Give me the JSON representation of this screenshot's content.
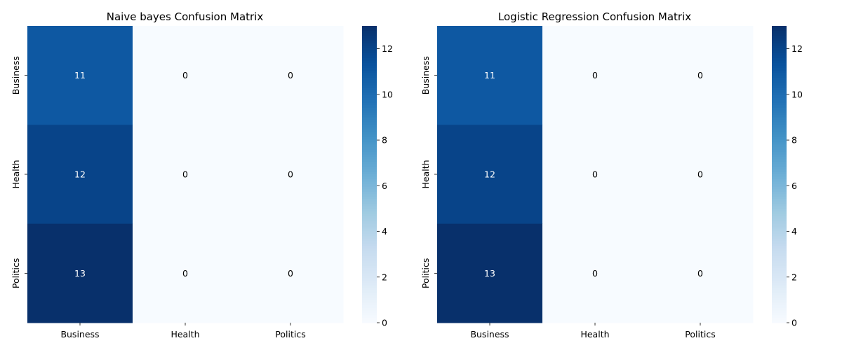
{
  "colors": {
    "cmap_low": "#f7fbff",
    "cmap_stops": [
      "#f7fbff",
      "#deebf7",
      "#c6dbef",
      "#9ecae1",
      "#6baed6",
      "#4292c6",
      "#2171b5",
      "#08519c",
      "#08306b"
    ],
    "text_dark": "#000000",
    "text_light": "#ffffff"
  },
  "chart_data": [
    {
      "type": "heatmap",
      "title": "Naive bayes Confusion Matrix",
      "x_categories": [
        "Business",
        "Health",
        "Politics"
      ],
      "y_categories": [
        "Business",
        "Health",
        "Politics"
      ],
      "values": [
        [
          11,
          0,
          0
        ],
        [
          12,
          0,
          0
        ],
        [
          13,
          0,
          0
        ]
      ],
      "colorbar": {
        "min": 0,
        "max": 13,
        "ticks": [
          0,
          2,
          4,
          6,
          8,
          10,
          12
        ]
      },
      "colormap": "Blues"
    },
    {
      "type": "heatmap",
      "title": "Logistic Regression Confusion Matrix",
      "x_categories": [
        "Business",
        "Health",
        "Politics"
      ],
      "y_categories": [
        "Business",
        "Health",
        "Politics"
      ],
      "values": [
        [
          11,
          0,
          0
        ],
        [
          12,
          0,
          0
        ],
        [
          13,
          0,
          0
        ]
      ],
      "colorbar": {
        "min": 0,
        "max": 13,
        "ticks": [
          0,
          2,
          4,
          6,
          8,
          10,
          12
        ]
      },
      "colormap": "Blues"
    }
  ]
}
